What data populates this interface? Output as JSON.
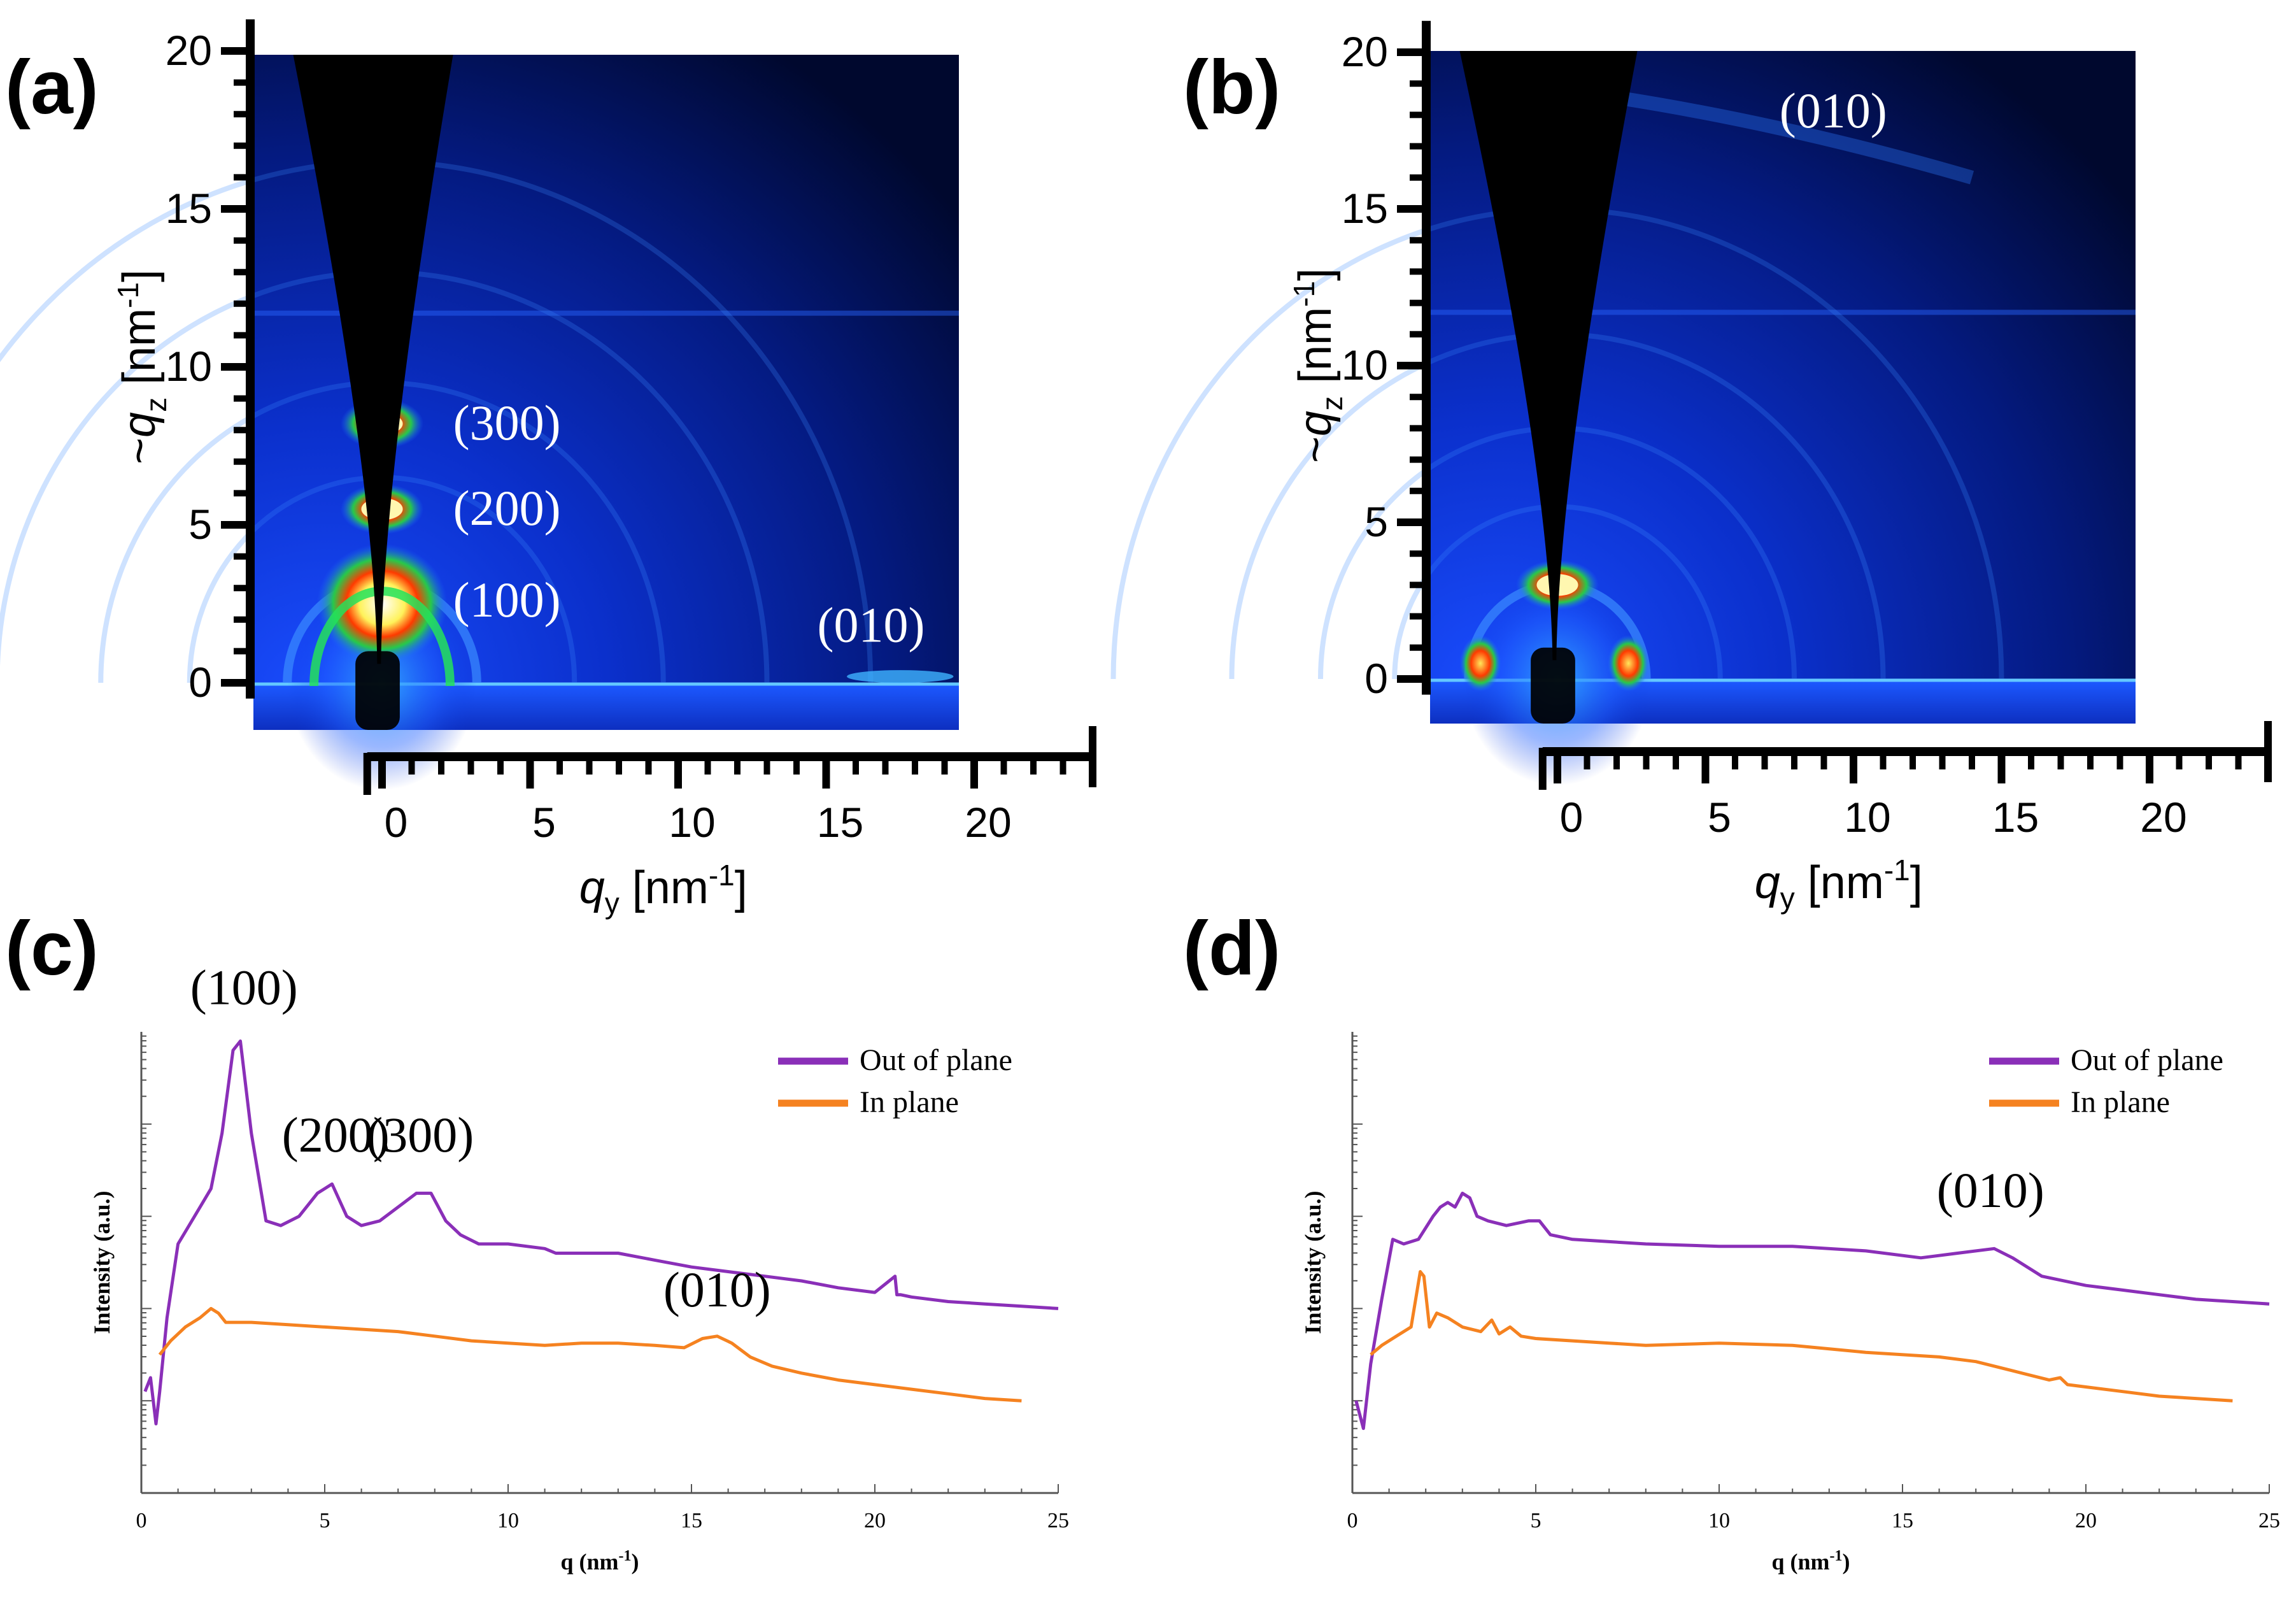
{
  "figure": {
    "panel_labels": [
      "(a)",
      "(b)",
      "(c)",
      "(d)"
    ]
  },
  "colors": {
    "detector_dark": "#00082e",
    "detector_blue": "#0b36d9",
    "out_of_plane": "#8a2fb8",
    "in_plane": "#f58220"
  },
  "chart_data": [
    {
      "panel": "(a)",
      "type": "heatmap",
      "xlabel": "q_y [nm^-1]",
      "ylabel": "~q_z [nm^-1]",
      "xlabel_parts": {
        "pre": "",
        "sym": "q",
        "sub": "y",
        "unit": " [nm",
        "sup": "-1",
        "close": "]"
      },
      "ylabel_parts": {
        "pre": "~",
        "sym": "q",
        "sub": "z",
        "unit": " [nm",
        "sup": "-1",
        "close": "]"
      },
      "x_ticks": [
        "0",
        "5",
        "10",
        "15",
        "20"
      ],
      "y_ticks": [
        "0",
        "5",
        "10",
        "15",
        "20"
      ],
      "xlim": [
        -2,
        20
      ],
      "ylim": [
        -1.5,
        20
      ],
      "features": [
        {
          "label": "(300)",
          "qy": 0,
          "qz": 8.2
        },
        {
          "label": "(200)",
          "qy": 0,
          "qz": 5.5
        },
        {
          "label": "(100)",
          "qy": 0,
          "qz": 2.7
        },
        {
          "label": "(010)",
          "qy": 17.5,
          "qz": 0.2
        }
      ],
      "annotations": [
        {
          "text": "(300)",
          "qy": 2.4,
          "qz": 7.7
        },
        {
          "text": "(200)",
          "qy": 2.4,
          "qz": 5.0
        },
        {
          "text": "(100)",
          "qy": 2.4,
          "qz": 2.1
        },
        {
          "text": "(010)",
          "qy": 14.7,
          "qz": 1.3
        }
      ]
    },
    {
      "panel": "(b)",
      "type": "heatmap",
      "xlabel": "q_y [nm^-1]",
      "ylabel": "~q_z [nm^-1]",
      "xlabel_parts": {
        "pre": "",
        "sym": "q",
        "sub": "y",
        "unit": " [nm",
        "sup": "-1",
        "close": "]"
      },
      "ylabel_parts": {
        "pre": "~",
        "sym": "q",
        "sub": "z",
        "unit": " [nm",
        "sup": "-1",
        "close": "]"
      },
      "x_ticks": [
        "0",
        "5",
        "10",
        "15",
        "20"
      ],
      "y_ticks": [
        "0",
        "5",
        "10",
        "15",
        "20"
      ],
      "xlim": [
        -2,
        20
      ],
      "ylim": [
        -1.5,
        20
      ],
      "features": [
        {
          "label": "(100)",
          "qy": 0,
          "qz": 3.0
        },
        {
          "label": "(010)",
          "qy": 3,
          "qz": 18.5
        }
      ],
      "annotations": [
        {
          "text": "(010)",
          "qy": 7.5,
          "qz": 17.6
        }
      ]
    },
    {
      "panel": "(c)",
      "type": "line",
      "xlabel": "q (nm-1)",
      "xlabel_parts": {
        "main": "q (nm",
        "sup": "-1",
        "close": ")"
      },
      "ylabel": "Intensity (a.u.)",
      "xlim": [
        0,
        25
      ],
      "ylim": [
        0,
        10
      ],
      "x_ticks": [
        "0",
        "5",
        "10",
        "15",
        "20",
        "25"
      ],
      "legend": {
        "position": "top-right"
      },
      "series": [
        {
          "name": "Out of plane",
          "color": "#8a2fb8",
          "x": [
            0.1,
            0.25,
            0.4,
            0.5,
            0.7,
            1.0,
            1.3,
            1.6,
            1.9,
            2.2,
            2.5,
            2.7,
            3.0,
            3.4,
            3.8,
            4.3,
            4.8,
            5.2,
            5.6,
            6.0,
            6.5,
            7.0,
            7.5,
            7.9,
            8.3,
            8.7,
            9.2,
            10,
            11,
            11.3,
            12,
            13,
            14,
            15,
            16,
            17,
            18,
            19,
            20,
            20.55,
            20.6,
            20.7,
            21,
            22,
            23,
            24,
            25
          ],
          "y": [
            2.2,
            2.5,
            1.5,
            2.2,
            3.8,
            5.4,
            5.8,
            6.2,
            6.6,
            7.8,
            9.6,
            9.8,
            7.8,
            5.9,
            5.8,
            6.0,
            6.5,
            6.7,
            6.0,
            5.8,
            5.9,
            6.2,
            6.5,
            6.5,
            5.9,
            5.6,
            5.4,
            5.4,
            5.3,
            5.2,
            5.2,
            5.2,
            5.05,
            4.9,
            4.8,
            4.7,
            4.6,
            4.45,
            4.35,
            4.7,
            4.3,
            4.3,
            4.25,
            4.15,
            4.1,
            4.05,
            4.0
          ]
        },
        {
          "name": "In plane",
          "color": "#f58220",
          "x": [
            0.5,
            0.8,
            1.2,
            1.6,
            1.9,
            2.1,
            2.3,
            3.0,
            4.0,
            5.0,
            6.0,
            7.0,
            8.0,
            9.0,
            10,
            11,
            12,
            13,
            14,
            14.8,
            15.3,
            15.7,
            16.1,
            16.6,
            17.2,
            18,
            19,
            20,
            21,
            22,
            23,
            24
          ],
          "y": [
            3.0,
            3.3,
            3.6,
            3.8,
            4.0,
            3.9,
            3.7,
            3.7,
            3.65,
            3.6,
            3.55,
            3.5,
            3.4,
            3.3,
            3.25,
            3.2,
            3.25,
            3.25,
            3.2,
            3.15,
            3.35,
            3.4,
            3.25,
            2.95,
            2.75,
            2.6,
            2.45,
            2.35,
            2.25,
            2.15,
            2.05,
            2.0
          ]
        }
      ],
      "annotations": [
        {
          "text": "(100)",
          "x": 2.8,
          "y": 10.6
        },
        {
          "text": "(200)",
          "x": 5.3,
          "y": 7.4
        },
        {
          "text": "(300)",
          "x": 7.6,
          "y": 7.4
        },
        {
          "text": "(010)",
          "x": 15.7,
          "y": 4.05
        }
      ]
    },
    {
      "panel": "(d)",
      "type": "line",
      "xlabel": "q (nm-1)",
      "xlabel_parts": {
        "main": "q (nm",
        "sup": "-1",
        "close": ")"
      },
      "ylabel": "Intensity (a.u.)",
      "xlim": [
        0,
        25
      ],
      "ylim": [
        0,
        10
      ],
      "x_ticks": [
        "0",
        "5",
        "10",
        "15",
        "20",
        "25"
      ],
      "legend": {
        "position": "top-right"
      },
      "series": [
        {
          "name": "Out of plane",
          "color": "#8a2fb8",
          "x": [
            0.1,
            0.3,
            0.5,
            0.8,
            1.1,
            1.4,
            1.8,
            2.2,
            2.4,
            2.6,
            2.8,
            3.0,
            3.2,
            3.4,
            3.7,
            4.2,
            4.8,
            5.1,
            5.4,
            6.0,
            7.0,
            8.0,
            10,
            12,
            14,
            15.5,
            16.5,
            17.5,
            18,
            18.8,
            20,
            21,
            22,
            23,
            24,
            25
          ],
          "y": [
            2.0,
            1.4,
            2.8,
            4.2,
            5.5,
            5.4,
            5.5,
            6.0,
            6.2,
            6.3,
            6.2,
            6.5,
            6.4,
            6.0,
            5.9,
            5.8,
            5.9,
            5.9,
            5.6,
            5.5,
            5.45,
            5.4,
            5.35,
            5.35,
            5.25,
            5.1,
            5.2,
            5.3,
            5.1,
            4.7,
            4.5,
            4.4,
            4.3,
            4.2,
            4.15,
            4.1
          ]
        },
        {
          "name": "In plane",
          "color": "#f58220",
          "x": [
            0.5,
            0.8,
            1.2,
            1.6,
            1.85,
            1.95,
            2.1,
            2.3,
            2.6,
            3.0,
            3.5,
            3.8,
            4.0,
            4.3,
            4.6,
            5.0,
            6.0,
            7.0,
            8.0,
            10,
            12,
            14,
            16,
            17,
            18,
            19,
            19.3,
            19.5,
            20,
            21,
            22,
            23,
            24
          ],
          "y": [
            3.0,
            3.2,
            3.4,
            3.6,
            4.8,
            4.7,
            3.6,
            3.9,
            3.8,
            3.6,
            3.5,
            3.75,
            3.45,
            3.6,
            3.4,
            3.35,
            3.3,
            3.25,
            3.2,
            3.25,
            3.2,
            3.05,
            2.95,
            2.85,
            2.65,
            2.45,
            2.5,
            2.35,
            2.3,
            2.2,
            2.1,
            2.05,
            2.0
          ]
        }
      ],
      "annotations": [
        {
          "text": "(010)",
          "x": 17.4,
          "y": 6.2
        }
      ]
    }
  ]
}
